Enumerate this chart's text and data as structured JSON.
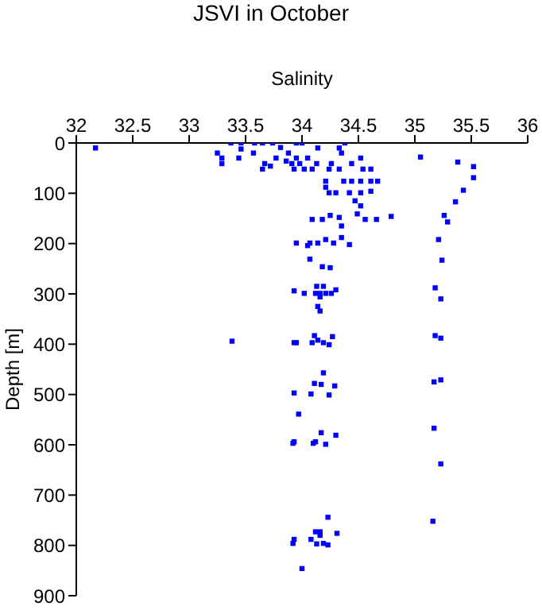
{
  "chart_data": {
    "type": "scatter",
    "title": "JSVI in October",
    "xlabel": "Salinity",
    "ylabel": "Depth [m]",
    "xlim": [
      32,
      36
    ],
    "xticks": [
      32,
      32.5,
      33,
      33.5,
      34,
      34.5,
      35,
      35.5,
      36
    ],
    "ylim": [
      900,
      0
    ],
    "yticks": [
      0,
      100,
      200,
      300,
      400,
      500,
      600,
      700,
      800,
      900
    ],
    "grid": false,
    "legend": false,
    "marker": "square",
    "series": [
      {
        "color": "#0000ff",
        "x": [
          32.17,
          33.37,
          33.46,
          33.25,
          33.29,
          33.29,
          33.44,
          33.46,
          33.58,
          33.57,
          33.65,
          33.67,
          33.65,
          33.74,
          33.81,
          33.88,
          33.95,
          34.0,
          33.91,
          33.93,
          33.72,
          33.77,
          33.86,
          33.95,
          33.98,
          34.05,
          34.02,
          34.09,
          34.14,
          34.13,
          34.21,
          34.21,
          34.26,
          34.33,
          34.35,
          34.38,
          34.33,
          34.24,
          34.44,
          34.52,
          34.54,
          34.61,
          34.37,
          34.44,
          34.52,
          34.61,
          34.67,
          34.24,
          34.3,
          34.42,
          34.52,
          34.61,
          34.47,
          34.52,
          34.49,
          34.09,
          34.18,
          34.25,
          34.33,
          34.35,
          34.56,
          34.66,
          34.79,
          33.95,
          34.05,
          34.14,
          34.21,
          34.28,
          34.35,
          34.42,
          34.07,
          34.07,
          34.18,
          34.25,
          35.05,
          35.38,
          35.52,
          35.52,
          35.43,
          35.36,
          35.26,
          35.29,
          35.21,
          35.24,
          33.93,
          34.02,
          34.12,
          34.16,
          34.21,
          34.26,
          34.3,
          34.19,
          34.13,
          34.16,
          34.14,
          34.16,
          35.18,
          35.23,
          33.38,
          33.93,
          33.95,
          34.09,
          34.14,
          34.19,
          34.11,
          34.24,
          34.27,
          35.18,
          35.23,
          33.93,
          34.08,
          34.24,
          34.11,
          34.17,
          34.29,
          34.19,
          35.17,
          35.23,
          33.97,
          33.92,
          33.93,
          34.1,
          34.12,
          34.21,
          34.17,
          34.3,
          35.17,
          35.23,
          35.16,
          34.23,
          34.12,
          34.16,
          34.16,
          34.31,
          33.93,
          33.92,
          34.08,
          34.13,
          34.19,
          34.23,
          34.0
        ],
        "values": [
          10,
          0,
          0,
          20,
          30,
          41,
          30,
          12,
          0,
          20,
          0,
          41,
          52,
          0,
          9,
          20,
          0,
          0,
          41,
          52,
          46,
          30,
          36,
          30,
          41,
          30,
          52,
          52,
          10,
          41,
          76,
          88,
          41,
          10,
          20,
          0,
          52,
          52,
          41,
          30,
          52,
          52,
          76,
          76,
          76,
          76,
          76,
          99,
          99,
          99,
          99,
          96,
          115,
          125,
          141,
          152,
          152,
          144,
          148,
          165,
          152,
          152,
          146,
          199,
          204,
          199,
          192,
          199,
          188,
          202,
          199,
          231,
          246,
          248,
          28,
          38,
          47,
          69,
          94,
          117,
          144,
          157,
          192,
          233,
          294,
          299,
          299,
          299,
          299,
          299,
          292,
          285,
          285,
          306,
          325,
          334,
          288,
          310,
          394,
          397,
          397,
          397,
          392,
          397,
          383,
          401,
          385,
          383,
          388,
          497,
          499,
          501,
          478,
          480,
          483,
          457,
          475,
          471,
          539,
          597,
          594,
          597,
          594,
          599,
          576,
          581,
          567,
          638,
          752,
          744,
          773,
          773,
          780,
          776,
          788,
          796,
          788,
          797,
          796,
          799,
          846
        ]
      }
    ]
  }
}
